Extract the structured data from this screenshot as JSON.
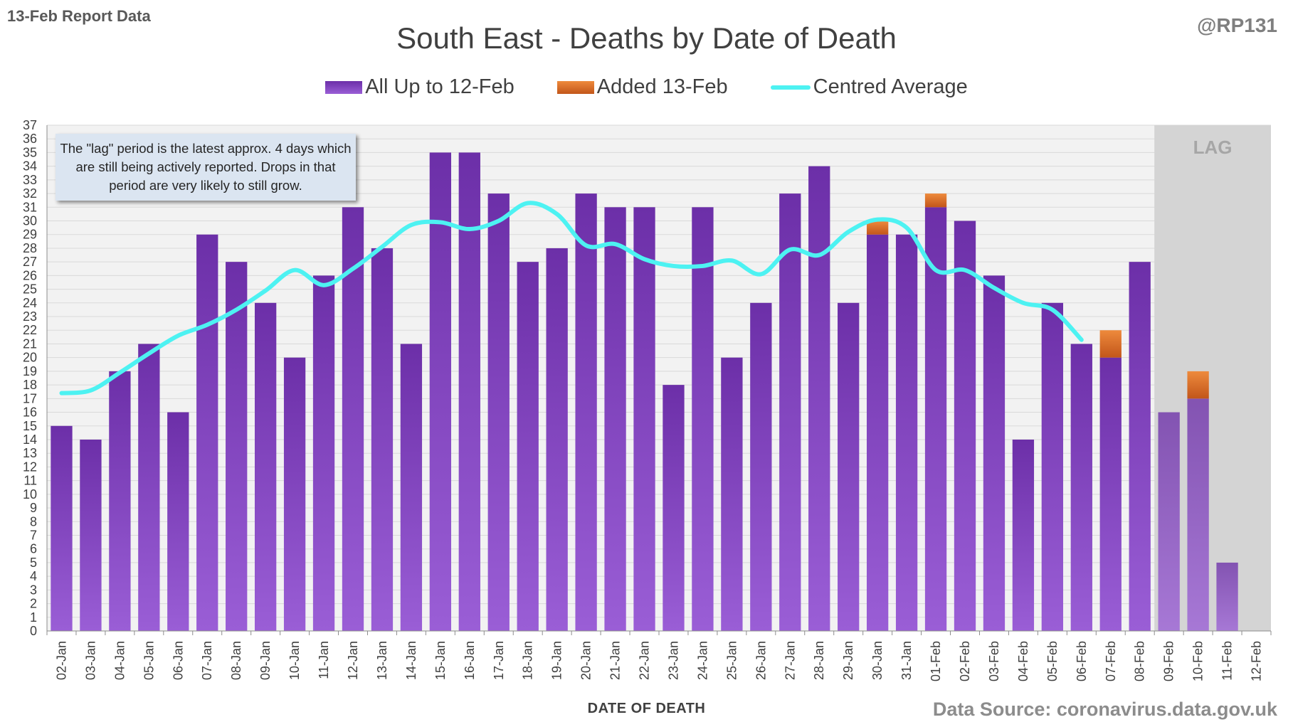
{
  "header": {
    "report_label": "13-Feb Report Data",
    "credit": "@RP131"
  },
  "footer": {
    "source": "Data Source: coronavirus.data.gov.uk"
  },
  "note": {
    "text": "The \"lag\" period is the latest approx. 4 days which are still being actively reported.  Drops in that period are very likely to still grow."
  },
  "colors": {
    "bar_purple_top": "#6c2fa8",
    "bar_purple_bottom": "#9a5ed6",
    "bar_orange_top": "#ee8a3c",
    "bar_orange_bottom": "#c2561a",
    "average_line": "#4df2f2",
    "lag_shade": "#d4d4d4"
  },
  "chart_data": {
    "type": "bar",
    "title": "South East - Deaths by Date of Death",
    "xlabel": "DATE OF DEATH",
    "ylabel": "",
    "ylim": [
      0,
      37
    ],
    "y_ticks": [
      0,
      1,
      2,
      3,
      4,
      5,
      6,
      7,
      8,
      9,
      10,
      11,
      12,
      13,
      14,
      15,
      16,
      17,
      18,
      19,
      20,
      21,
      22,
      23,
      24,
      25,
      26,
      27,
      28,
      29,
      30,
      31,
      32,
      33,
      34,
      35,
      36,
      37
    ],
    "stacked": true,
    "grid": true,
    "legend_position": "top",
    "categories": [
      "02-Jan",
      "03-Jan",
      "04-Jan",
      "05-Jan",
      "06-Jan",
      "07-Jan",
      "08-Jan",
      "09-Jan",
      "10-Jan",
      "11-Jan",
      "12-Jan",
      "13-Jan",
      "14-Jan",
      "15-Jan",
      "16-Jan",
      "17-Jan",
      "18-Jan",
      "19-Jan",
      "20-Jan",
      "21-Jan",
      "22-Jan",
      "23-Jan",
      "24-Jan",
      "25-Jan",
      "26-Jan",
      "27-Jan",
      "28-Jan",
      "29-Jan",
      "30-Jan",
      "31-Jan",
      "01-Feb",
      "02-Feb",
      "03-Feb",
      "04-Feb",
      "05-Feb",
      "06-Feb",
      "07-Feb",
      "08-Feb",
      "09-Feb",
      "10-Feb",
      "11-Feb",
      "12-Feb"
    ],
    "series": [
      {
        "name": "All Up to 12-Feb",
        "type": "bar",
        "values": [
          15,
          14,
          19,
          21,
          16,
          29,
          27,
          24,
          20,
          26,
          31,
          28,
          21,
          35,
          35,
          32,
          27,
          28,
          32,
          31,
          31,
          18,
          31,
          20,
          24,
          32,
          34,
          24,
          29,
          29,
          31,
          30,
          26,
          14,
          24,
          21,
          20,
          27,
          16,
          17,
          5,
          0
        ]
      },
      {
        "name": "Added 13-Feb",
        "type": "bar",
        "values": [
          0,
          0,
          0,
          0,
          0,
          0,
          0,
          0,
          0,
          0,
          0,
          0,
          0,
          0,
          0,
          0,
          0,
          0,
          0,
          0,
          0,
          0,
          0,
          0,
          0,
          0,
          0,
          0,
          1,
          0,
          1,
          0,
          0,
          0,
          0,
          0,
          2,
          0,
          0,
          2,
          0,
          0
        ]
      },
      {
        "name": "Centred Average",
        "type": "line",
        "values": [
          17.4,
          17.6,
          18.9,
          20.3,
          21.6,
          22.4,
          23.5,
          24.9,
          26.4,
          25.3,
          26.5,
          28.1,
          29.7,
          29.9,
          29.4,
          30.0,
          31.3,
          30.5,
          28.2,
          28.3,
          27.2,
          26.7,
          26.7,
          27.1,
          26.1,
          27.9,
          27.5,
          29.2,
          30.1,
          29.5,
          26.4,
          26.4,
          25.1,
          24.0,
          23.5,
          21.3,
          null,
          null,
          null,
          null,
          null,
          null
        ]
      }
    ],
    "lag_region": {
      "label": "LAG",
      "start": "09-Feb",
      "end": "12-Feb"
    }
  }
}
